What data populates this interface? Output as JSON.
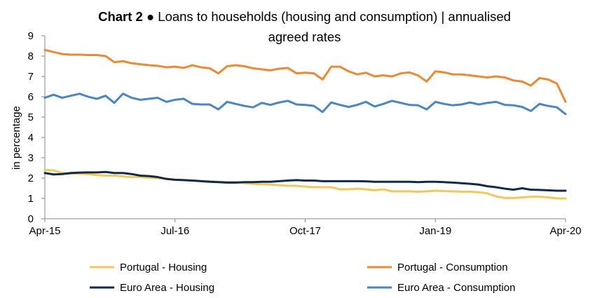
{
  "chart_data": {
    "type": "line",
    "title_bold": "Chart 2",
    "title_rest": " ● Loans to households (housing and consumption) | annualised",
    "title_line2": "agreed rates",
    "xlabel": "",
    "ylabel": "in percentage",
    "ylim": [
      0,
      9
    ],
    "yticks": [
      "0",
      "1",
      "2",
      "3",
      "4",
      "5",
      "6",
      "7",
      "8",
      "9"
    ],
    "x_start": "Apr-15",
    "x_end": "Apr-20",
    "x_count": 61,
    "xticks": [
      {
        "index": 0,
        "label": "Apr-15"
      },
      {
        "index": 15,
        "label": "Jul-16"
      },
      {
        "index": 30,
        "label": "Oct-17"
      },
      {
        "index": 45,
        "label": "Jan-19"
      },
      {
        "index": 60,
        "label": "Apr-20"
      }
    ],
    "grid": false,
    "legend_position": "bottom",
    "series": [
      {
        "name": "Portugal - Housing",
        "color": "#F2C75C",
        "values": [
          2.4,
          2.38,
          2.25,
          2.22,
          2.22,
          2.2,
          2.15,
          2.12,
          2.12,
          2.08,
          2.05,
          2.05,
          2.02,
          2.0,
          1.97,
          1.92,
          1.9,
          1.88,
          1.86,
          1.85,
          1.82,
          1.8,
          1.8,
          1.75,
          1.72,
          1.7,
          1.68,
          1.65,
          1.62,
          1.62,
          1.58,
          1.55,
          1.55,
          1.55,
          1.45,
          1.45,
          1.48,
          1.45,
          1.4,
          1.45,
          1.35,
          1.35,
          1.35,
          1.33,
          1.35,
          1.38,
          1.36,
          1.35,
          1.33,
          1.33,
          1.3,
          1.25,
          1.1,
          1.02,
          1.02,
          1.05,
          1.08,
          1.08,
          1.05,
          1.0,
          1.0
        ]
      },
      {
        "name": "Portugal - Consumption",
        "color": "#EB8A35",
        "values": [
          8.3,
          8.2,
          8.1,
          8.07,
          8.07,
          8.05,
          8.05,
          8.0,
          7.7,
          7.75,
          7.65,
          7.6,
          7.55,
          7.52,
          7.45,
          7.48,
          7.42,
          7.55,
          7.45,
          7.4,
          7.15,
          7.5,
          7.55,
          7.5,
          7.4,
          7.35,
          7.3,
          7.38,
          7.42,
          7.15,
          7.18,
          7.15,
          6.85,
          7.48,
          7.48,
          7.25,
          7.1,
          7.18,
          7.0,
          7.05,
          7.0,
          7.15,
          7.2,
          7.05,
          6.75,
          7.25,
          7.2,
          7.1,
          7.1,
          7.05,
          7.0,
          6.95,
          7.0,
          6.95,
          6.8,
          6.75,
          6.55,
          6.92,
          6.85,
          6.65,
          5.75
        ]
      },
      {
        "name": "Euro Area - Housing",
        "color": "#0F2A4A",
        "values": [
          2.25,
          2.18,
          2.2,
          2.25,
          2.27,
          2.28,
          2.28,
          2.3,
          2.25,
          2.25,
          2.2,
          2.12,
          2.1,
          2.05,
          1.96,
          1.92,
          1.9,
          1.88,
          1.85,
          1.82,
          1.8,
          1.78,
          1.78,
          1.8,
          1.8,
          1.82,
          1.82,
          1.85,
          1.88,
          1.9,
          1.88,
          1.88,
          1.85,
          1.85,
          1.85,
          1.85,
          1.85,
          1.84,
          1.82,
          1.82,
          1.82,
          1.82,
          1.82,
          1.8,
          1.82,
          1.82,
          1.8,
          1.78,
          1.75,
          1.72,
          1.68,
          1.6,
          1.55,
          1.48,
          1.43,
          1.5,
          1.43,
          1.42,
          1.4,
          1.38,
          1.38
        ]
      },
      {
        "name": "Euro Area - Consumption",
        "color": "#4A86BF",
        "values": [
          5.95,
          6.1,
          5.95,
          6.05,
          6.15,
          6.0,
          5.9,
          6.05,
          5.7,
          6.15,
          5.95,
          5.85,
          5.9,
          5.95,
          5.75,
          5.85,
          5.9,
          5.65,
          5.62,
          5.62,
          5.38,
          5.75,
          5.65,
          5.55,
          5.48,
          5.7,
          5.6,
          5.72,
          5.8,
          5.62,
          5.6,
          5.55,
          5.25,
          5.72,
          5.6,
          5.5,
          5.6,
          5.75,
          5.52,
          5.65,
          5.8,
          5.7,
          5.6,
          5.58,
          5.38,
          5.75,
          5.65,
          5.58,
          5.62,
          5.72,
          5.62,
          5.7,
          5.75,
          5.6,
          5.58,
          5.5,
          5.3,
          5.65,
          5.55,
          5.48,
          5.15
        ]
      }
    ]
  }
}
